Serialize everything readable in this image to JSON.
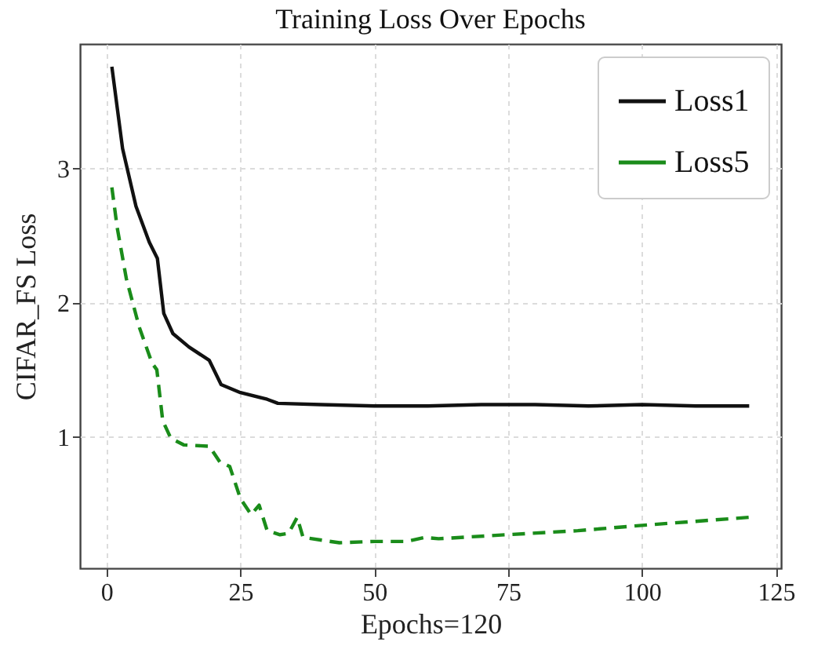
{
  "chart_data": {
    "type": "line",
    "title": "Training Loss Over Epochs",
    "xlabel": "Epochs=120",
    "ylabel": "CIFAR_FS Loss",
    "xlim": [
      -4.95,
      125.95
    ],
    "xticks": [
      0,
      25,
      50,
      75,
      100,
      125
    ],
    "ylim": [
      0.02,
      3.93
    ],
    "yticks": [
      1,
      2,
      3
    ],
    "grid": true,
    "legend": "top right",
    "marker": "none",
    "series": [
      {
        "name": "Loss1",
        "color": "#111111",
        "line_style": "solid",
        "x": [
          1,
          3,
          5.5,
          8,
          9.5,
          10.7,
          12.4,
          15.4,
          19.2,
          21.4,
          25,
          30,
          32,
          40,
          50,
          60,
          70,
          80,
          90,
          100,
          110,
          120
        ],
        "values": [
          3.76,
          3.15,
          2.72,
          2.45,
          2.33,
          1.92,
          1.77,
          1.67,
          1.57,
          1.39,
          1.33,
          1.28,
          1.25,
          1.24,
          1.23,
          1.23,
          1.24,
          1.24,
          1.23,
          1.24,
          1.23,
          1.23
        ]
      },
      {
        "name": "Loss5",
        "color": "#1a8c1a",
        "line_style": "dashed",
        "x": [
          1,
          2,
          3.7,
          6.1,
          8.5,
          9.4,
          10.5,
          12,
          14.4,
          19.2,
          21.2,
          23,
          25,
          27,
          28.5,
          30,
          32.4,
          34,
          35.6,
          36.7,
          43.5,
          50,
          56,
          59.5,
          62,
          74.6,
          88,
          100,
          110,
          120
        ],
        "values": [
          2.86,
          2.56,
          2.18,
          1.82,
          1.55,
          1.5,
          1.12,
          0.99,
          0.94,
          0.93,
          0.81,
          0.78,
          0.54,
          0.42,
          0.49,
          0.3,
          0.27,
          0.28,
          0.4,
          0.25,
          0.21,
          0.22,
          0.22,
          0.25,
          0.24,
          0.27,
          0.3,
          0.34,
          0.37,
          0.4
        ]
      }
    ]
  }
}
